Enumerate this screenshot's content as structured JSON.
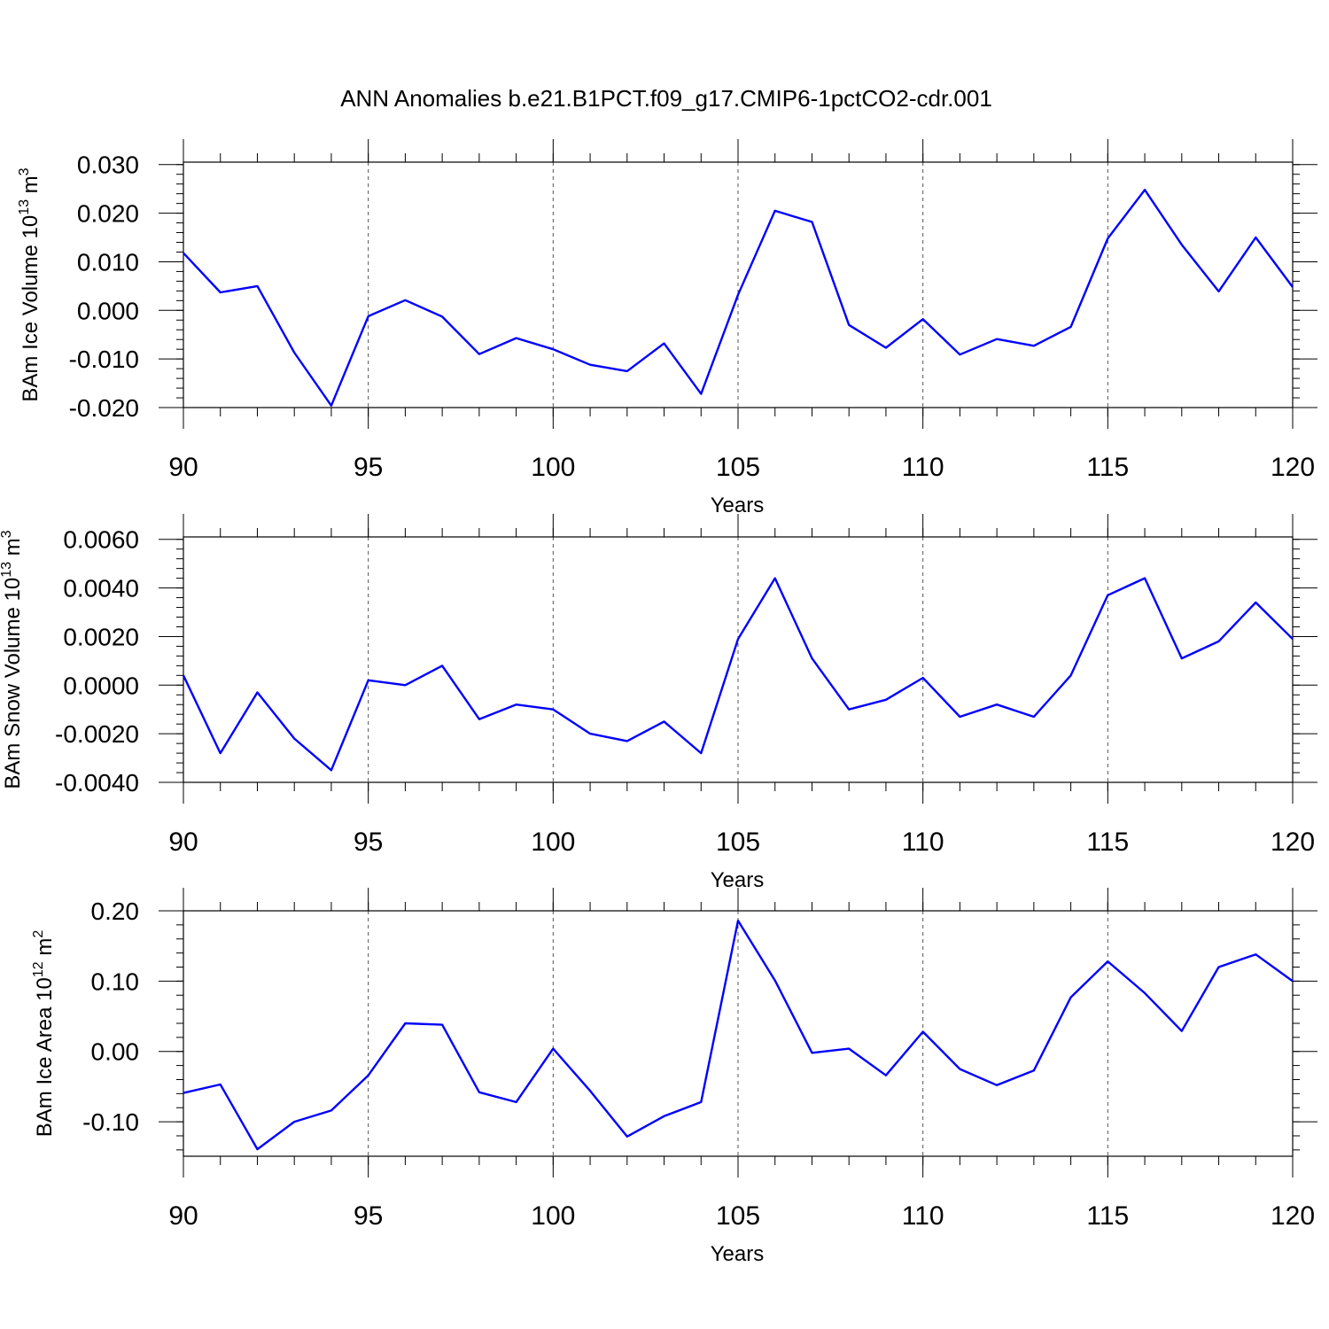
{
  "title": "ANN Anomalies b.e21.B1PCT.f09_g17.CMIP6-1pctCO2-cdr.001",
  "line_color": "#0000ff",
  "chart_data": [
    {
      "type": "line",
      "ylabel_main": "BAm Ice Volume 10",
      "ylabel_exp": "13",
      "ylabel_unit": " m",
      "ylabel_unit_exp": "3",
      "xlabel": "Years",
      "xlim": [
        90,
        120
      ],
      "ylim": [
        -0.02,
        0.0305
      ],
      "xticks": [
        90,
        95,
        100,
        105,
        110,
        115,
        120
      ],
      "xtick_labels": [
        "90",
        "95",
        "100",
        "105",
        "110",
        "115",
        "120"
      ],
      "yticks": [
        -0.02,
        -0.01,
        0.0,
        0.01,
        0.02,
        0.03
      ],
      "ytick_labels": [
        "-0.020",
        "-0.010",
        "0.000",
        "0.010",
        "0.020",
        "0.030"
      ],
      "minor_ystep": 0.002,
      "grid": "x dashed at major ticks",
      "x": [
        90,
        91,
        92,
        93,
        94,
        95,
        96,
        97,
        98,
        99,
        100,
        101,
        102,
        103,
        104,
        105,
        106,
        107,
        108,
        109,
        110,
        111,
        112,
        113,
        114,
        115,
        116,
        117,
        118,
        119,
        120
      ],
      "y": [
        0.0118,
        0.0037,
        0.005,
        -0.0087,
        -0.0196,
        -0.0012,
        0.0021,
        -0.0013,
        -0.009,
        -0.0057,
        -0.008,
        -0.0112,
        -0.0125,
        -0.0068,
        -0.0172,
        0.0032,
        0.0205,
        0.0182,
        -0.003,
        -0.0077,
        -0.0018,
        -0.0091,
        -0.0059,
        -0.0073,
        -0.0034,
        0.0148,
        0.0248,
        0.0135,
        0.0039,
        0.015,
        0.0048
      ]
    },
    {
      "type": "line",
      "ylabel_main": "BAm Snow Volume 10",
      "ylabel_exp": "13",
      "ylabel_unit": " m",
      "ylabel_unit_exp": "3",
      "xlabel": "Years",
      "xlim": [
        90,
        120
      ],
      "ylim": [
        -0.004,
        0.0061
      ],
      "xticks": [
        90,
        95,
        100,
        105,
        110,
        115,
        120
      ],
      "xtick_labels": [
        "90",
        "95",
        "100",
        "105",
        "110",
        "115",
        "120"
      ],
      "yticks": [
        -0.004,
        -0.002,
        0.0,
        0.002,
        0.004,
        0.006
      ],
      "ytick_labels": [
        "-0.0040",
        "-0.0020",
        "0.0000",
        "0.0020",
        "0.0040",
        "0.0060"
      ],
      "minor_ystep": 0.0004,
      "grid": "x dashed at major ticks",
      "x": [
        90,
        91,
        92,
        93,
        94,
        95,
        96,
        97,
        98,
        99,
        100,
        101,
        102,
        103,
        104,
        105,
        106,
        107,
        108,
        109,
        110,
        111,
        112,
        113,
        114,
        115,
        116,
        117,
        118,
        119,
        120
      ],
      "y": [
        0.0004,
        -0.0028,
        -0.0003,
        -0.0022,
        -0.0035,
        0.0002,
        0.0,
        0.0008,
        -0.0014,
        -0.0008,
        -0.001,
        -0.002,
        -0.0023,
        -0.0015,
        -0.0028,
        0.0019,
        0.0044,
        0.0011,
        -0.001,
        -0.0006,
        0.0003,
        -0.0013,
        -0.0008,
        -0.0013,
        0.0004,
        0.0037,
        0.0044,
        0.0011,
        0.0018,
        0.0034,
        0.0019
      ]
    },
    {
      "type": "line",
      "ylabel_main": "BAm Ice Area 10",
      "ylabel_exp": "12",
      "ylabel_unit": " m",
      "ylabel_unit_exp": "2",
      "xlabel": "Years",
      "xlim": [
        90,
        120
      ],
      "ylim": [
        -0.149,
        0.2
      ],
      "xticks": [
        90,
        95,
        100,
        105,
        110,
        115,
        120
      ],
      "xtick_labels": [
        "90",
        "95",
        "100",
        "105",
        "110",
        "115",
        "120"
      ],
      "yticks": [
        -0.1,
        0.0,
        0.1,
        0.2
      ],
      "ytick_labels": [
        "-0.10",
        "0.00",
        "0.10",
        "0.20"
      ],
      "minor_ystep": 0.02,
      "grid": "x dashed at major ticks",
      "x": [
        90,
        91,
        92,
        93,
        94,
        95,
        96,
        97,
        98,
        99,
        100,
        101,
        102,
        103,
        104,
        105,
        106,
        107,
        108,
        109,
        110,
        111,
        112,
        113,
        114,
        115,
        116,
        117,
        118,
        119,
        120
      ],
      "y": [
        -0.059,
        -0.047,
        -0.139,
        -0.1,
        -0.084,
        -0.034,
        0.04,
        0.038,
        -0.058,
        -0.072,
        0.004,
        -0.056,
        -0.121,
        -0.092,
        -0.072,
        0.186,
        0.101,
        -0.002,
        0.004,
        -0.034,
        0.028,
        -0.025,
        -0.048,
        -0.027,
        0.077,
        0.128,
        0.083,
        0.029,
        0.12,
        0.138,
        0.1
      ]
    }
  ]
}
